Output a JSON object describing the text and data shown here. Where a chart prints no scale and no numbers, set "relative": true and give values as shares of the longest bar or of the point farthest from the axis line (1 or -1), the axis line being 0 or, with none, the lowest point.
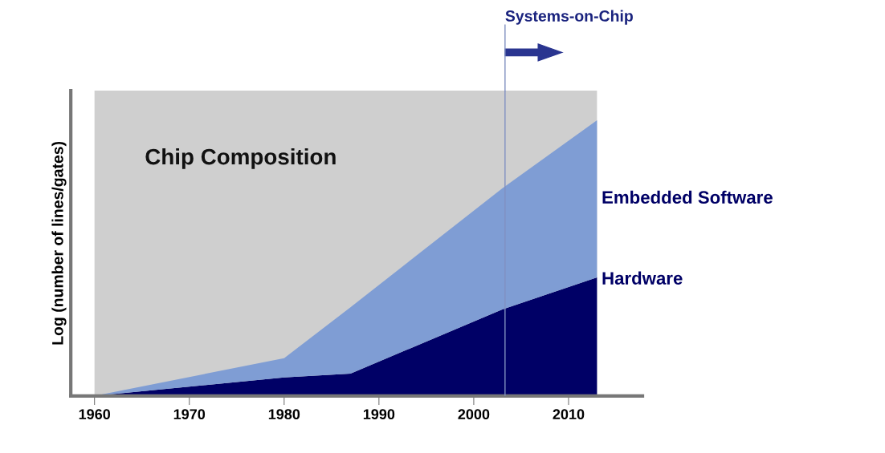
{
  "chart_data": {
    "type": "area",
    "stacked": true,
    "relative": true,
    "ylabel": "Log (number of lines/gates)",
    "x": [
      1960,
      1980,
      1987,
      2003,
      2013
    ],
    "xlim": [
      1957.5,
      2017.8
    ],
    "xticks": [
      1960,
      1970,
      1980,
      1990,
      2000,
      2010
    ],
    "series": [
      {
        "name": "Hardware",
        "color": "#000066",
        "values": [
          0,
          0.067,
          0.081,
          0.314,
          0.43
        ]
      },
      {
        "name": "Embedded Software",
        "color": "#7f9dd4",
        "values": [
          0,
          0.07,
          0.241,
          0.439,
          0.57
        ]
      }
    ],
    "ref_lines": [
      {
        "axis": "x",
        "value": 2003.3,
        "label": "Systems-on-Chip",
        "color": "#8090c0"
      }
    ],
    "bands": [
      {
        "axis": "x",
        "from": 1960,
        "to": 2013,
        "label": "Chip Composition",
        "color": "#cfcfcf"
      }
    ],
    "grid": false,
    "legend": false
  }
}
